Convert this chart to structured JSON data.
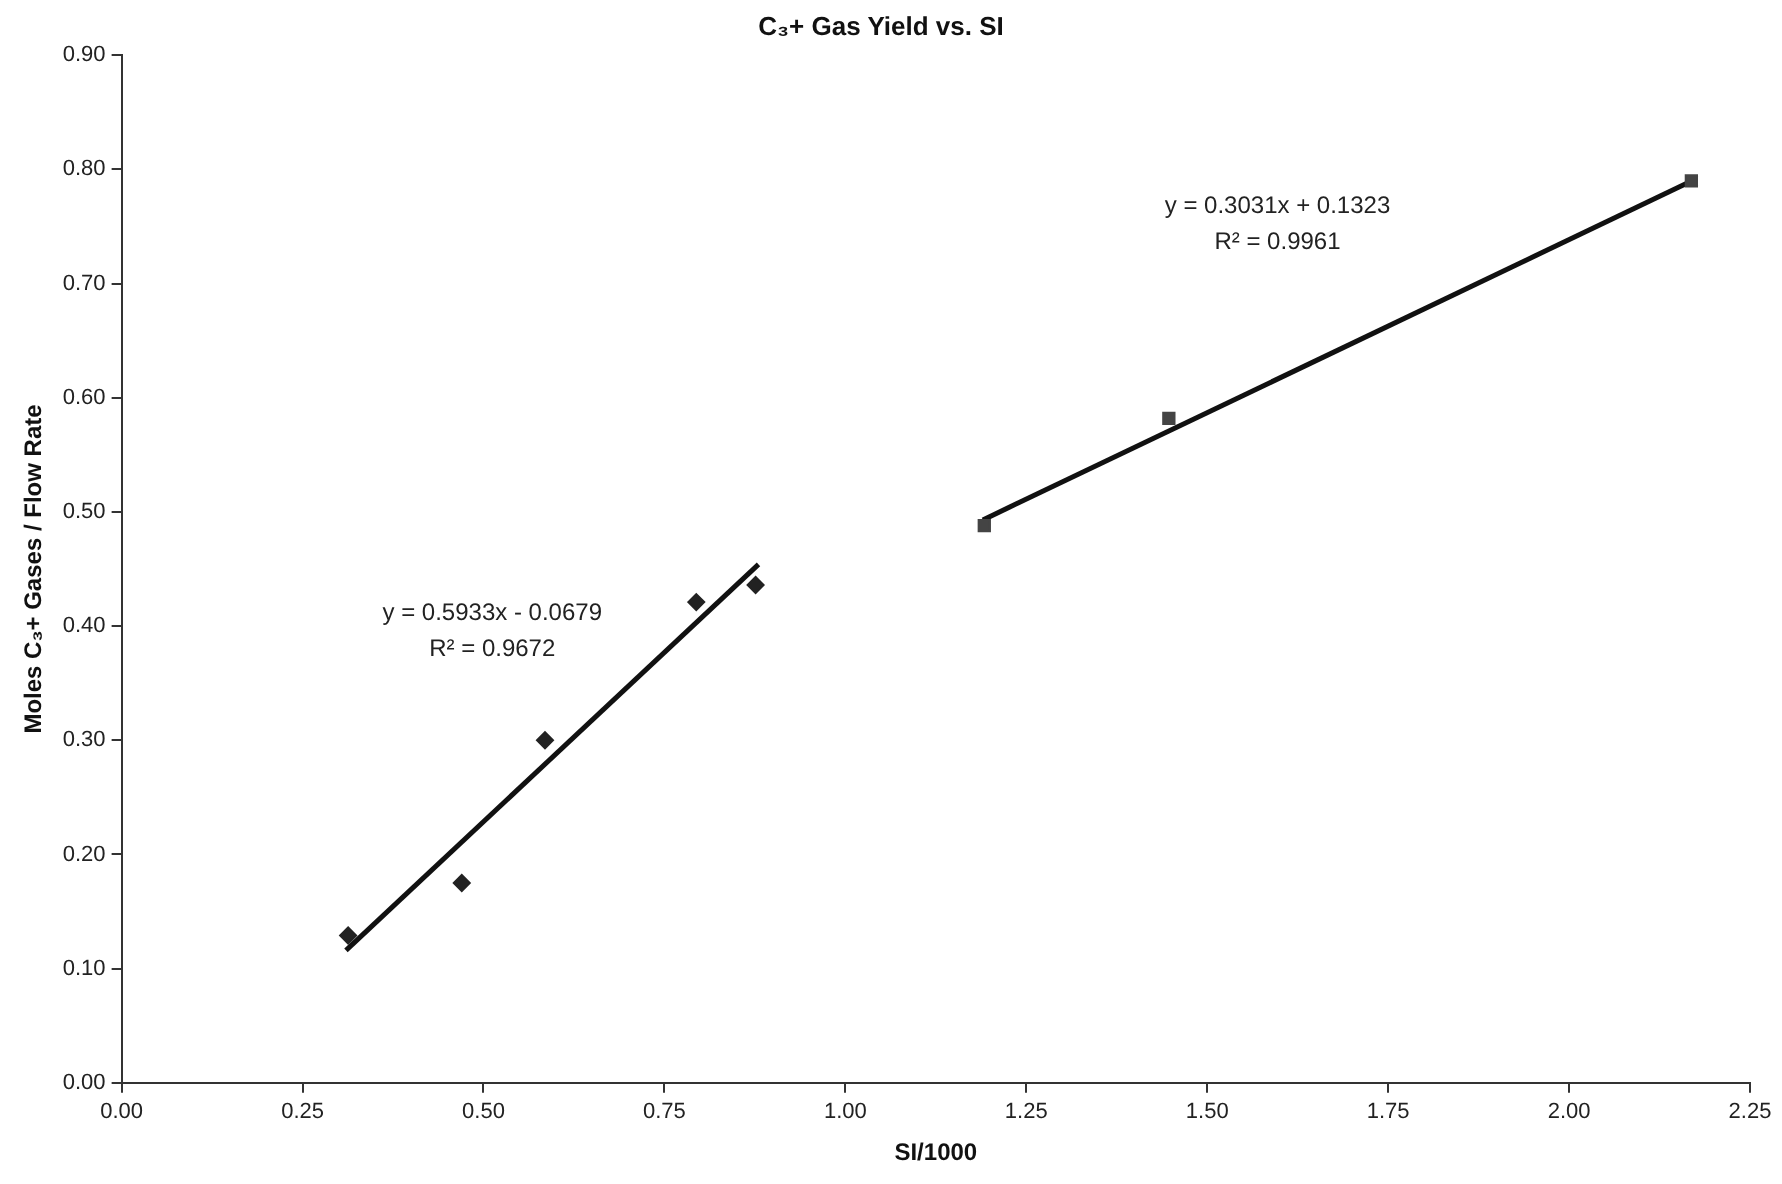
{
  "chart_data": {
    "type": "scatter",
    "title": "C₃+ Gas Yield vs. SI",
    "xlabel": "SI/1000",
    "ylabel": "Moles C₃+ Gases / Flow Rate",
    "series": [
      {
        "type": "scatter",
        "color": "#222222",
        "marker": "diamond",
        "x": [
          0.313,
          0.47,
          0.585,
          0.794,
          0.876
        ],
        "values": [
          0.129,
          0.175,
          0.3,
          0.421,
          0.436
        ]
      },
      {
        "type": "scatter",
        "color": "#444444",
        "marker": "square",
        "x": [
          1.192,
          1.447,
          2.169
        ],
        "values": [
          0.488,
          0.582,
          0.79
        ]
      },
      {
        "type": "line",
        "color": "#111111",
        "marker": "none",
        "x": [
          0.31,
          0.88
        ],
        "values": [
          0.116,
          0.454
        ]
      },
      {
        "type": "line",
        "color": "#111111",
        "marker": "none",
        "x": [
          1.19,
          2.17
        ],
        "values": [
          0.493,
          0.79
        ]
      }
    ],
    "annotations": [
      "y = 0.5933x - 0.0679",
      "R² = 0.9672",
      "y = 0.3031x + 0.1323",
      "R² = 0.9961"
    ],
    "xlim": [
      0,
      2.25
    ],
    "xticks": [
      {
        "value": 0,
        "label": "0.00"
      },
      {
        "value": 0.25,
        "label": "0.25"
      },
      {
        "value": 0.5,
        "label": "0.50"
      },
      {
        "value": 0.75,
        "label": "0.75"
      },
      {
        "value": 1,
        "label": "1.00"
      },
      {
        "value": 1.25,
        "label": "1.25"
      },
      {
        "value": 1.5,
        "label": "1.50"
      },
      {
        "value": 1.75,
        "label": "1.75"
      },
      {
        "value": 2,
        "label": "2.00"
      },
      {
        "value": 2.25,
        "label": "2.25"
      }
    ],
    "ylim": [
      0,
      0.9
    ],
    "yticks": [
      {
        "value": 0,
        "label": "0.00"
      },
      {
        "value": 0.1,
        "label": "0.10"
      },
      {
        "value": 0.2,
        "label": "0.20"
      },
      {
        "value": 0.3,
        "label": "0.30"
      },
      {
        "value": 0.4,
        "label": "0.40"
      },
      {
        "value": 0.5,
        "label": "0.50"
      },
      {
        "value": 0.6,
        "label": "0.60"
      },
      {
        "value": 0.7,
        "label": "0.70"
      },
      {
        "value": 0.8,
        "label": "0.80"
      },
      {
        "value": 0.9,
        "label": "0.90"
      }
    ],
    "grid": false,
    "legend": false
  }
}
